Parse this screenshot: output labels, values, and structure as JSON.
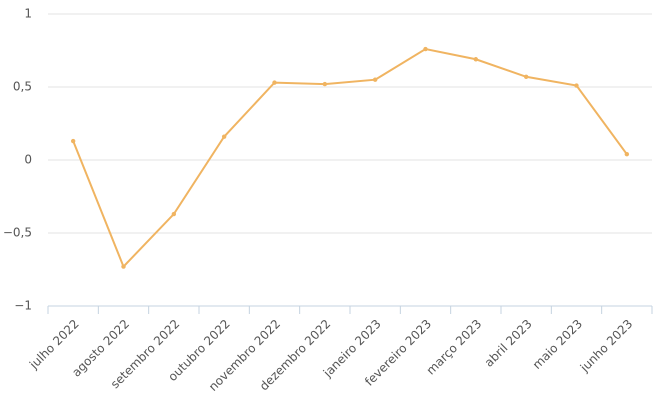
{
  "chart_data": {
    "type": "line",
    "categories": [
      "julho 2022",
      "agosto 2022",
      "setembro 2022",
      "outubro 2022",
      "novembro 2022",
      "dezembro 2022",
      "janeiro 2023",
      "fevereiro 2023",
      "março 2023",
      "abril 2023",
      "maio 2023",
      "junho 2023"
    ],
    "series": [
      {
        "color": "#f0b461",
        "values": [
          0.13,
          -0.73,
          -0.37,
          0.16,
          0.53,
          0.52,
          0.55,
          0.76,
          0.69,
          0.57,
          0.51,
          0.04
        ]
      }
    ],
    "ylim": [
      -1,
      1
    ],
    "yticks": [
      {
        "value": -1,
        "label": "−1"
      },
      {
        "value": -0.5,
        "label": "−0,5"
      },
      0,
      {
        "value": 0.5,
        "label": "0,5"
      },
      1
    ],
    "grid": true
  }
}
